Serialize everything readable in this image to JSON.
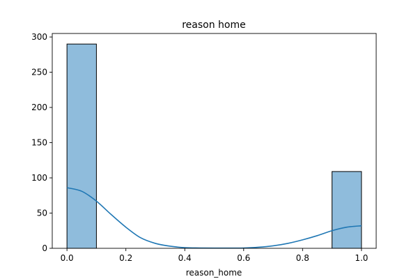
{
  "chart_data": {
    "type": "bar",
    "title": "reason home",
    "xlabel": "reason_home",
    "ylabel": "",
    "xlim": [
      -0.05,
      1.05
    ],
    "ylim": [
      0,
      305
    ],
    "x_ticks": [
      0.0,
      0.2,
      0.4,
      0.6,
      0.8,
      1.0
    ],
    "x_tick_labels": [
      "0.0",
      "0.2",
      "0.4",
      "0.6",
      "0.8",
      "1.0"
    ],
    "y_ticks": [
      0,
      50,
      100,
      150,
      200,
      250,
      300
    ],
    "y_tick_labels": [
      "0",
      "50",
      "100",
      "150",
      "200",
      "250",
      "300"
    ],
    "bins": [
      {
        "x0": 0.0,
        "x1": 0.1,
        "count": 290
      },
      {
        "x0": 0.1,
        "x1": 0.2,
        "count": 0
      },
      {
        "x0": 0.2,
        "x1": 0.3,
        "count": 0
      },
      {
        "x0": 0.3,
        "x1": 0.4,
        "count": 0
      },
      {
        "x0": 0.4,
        "x1": 0.5,
        "count": 0
      },
      {
        "x0": 0.5,
        "x1": 0.6,
        "count": 0
      },
      {
        "x0": 0.6,
        "x1": 0.7,
        "count": 0
      },
      {
        "x0": 0.7,
        "x1": 0.8,
        "count": 0
      },
      {
        "x0": 0.8,
        "x1": 0.9,
        "count": 0
      },
      {
        "x0": 0.9,
        "x1": 1.0,
        "count": 109
      }
    ],
    "kde": {
      "x": [
        0.0,
        0.05,
        0.1,
        0.15,
        0.2,
        0.25,
        0.3,
        0.35,
        0.4,
        0.45,
        0.5,
        0.55,
        0.6,
        0.65,
        0.7,
        0.75,
        0.8,
        0.85,
        0.9,
        0.95,
        1.0
      ],
      "y": [
        86,
        81,
        67,
        48,
        30,
        15,
        7,
        3,
        1,
        0.5,
        0.3,
        0.3,
        0.5,
        1.5,
        3.5,
        7,
        12,
        18,
        25,
        30,
        32
      ]
    },
    "grid": false,
    "colors": {
      "bar_fill": "#8fbcdc",
      "bar_edge": "#000000",
      "kde_line": "#1f77b4"
    }
  }
}
